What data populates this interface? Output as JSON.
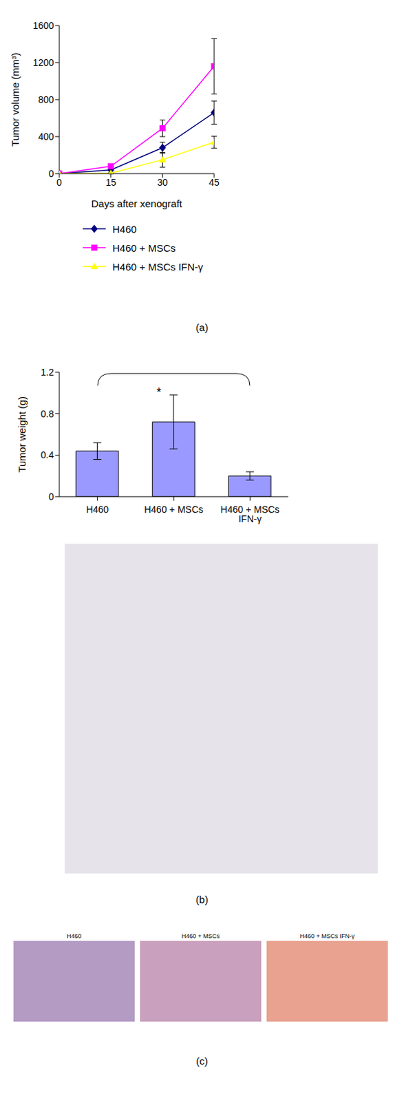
{
  "chart_data": [
    {
      "type": "line",
      "panel": "(a)",
      "x_label": "Days after xenograft",
      "y_label": "Tumor volume (mm³)",
      "x": [
        0,
        15,
        30,
        45
      ],
      "xlim": [
        0,
        45
      ],
      "xticks": [
        0,
        15,
        30,
        45
      ],
      "ylim": [
        0,
        1600
      ],
      "yticks": [
        0,
        400,
        800,
        1200,
        1600
      ],
      "legend": "bottom",
      "series": [
        {
          "name": "H460",
          "color": "#000080",
          "marker": "diamond",
          "values": [
            0,
            40,
            280,
            660
          ],
          "errors": [
            0,
            10,
            60,
            125
          ]
        },
        {
          "name": "H460 + MSCs",
          "color": "#ff00ff",
          "marker": "square",
          "values": [
            0,
            80,
            490,
            1160
          ],
          "errors": [
            0,
            15,
            90,
            300
          ]
        },
        {
          "name": "H460 + MSCs IFN-γ",
          "color": "#ffff00",
          "marker": "triangle",
          "values": [
            0,
            5,
            150,
            340
          ],
          "errors": [
            0,
            5,
            80,
            65
          ]
        }
      ]
    },
    {
      "type": "bar",
      "panel": "(b)",
      "y_label": "Tumor weight (g)",
      "categories": [
        "H460",
        "H460 + MSCs",
        "H460 + MSCs IFN-γ"
      ],
      "values": [
        0.44,
        0.72,
        0.2
      ],
      "errors": [
        0.08,
        0.26,
        0.04
      ],
      "color": "#9999ff",
      "ylim": [
        0,
        1.2
      ],
      "yticks": [
        0,
        0.4,
        0.8,
        1.2
      ],
      "annotation": "*"
    }
  ],
  "images": {
    "panel": "(c)",
    "titles": [
      "H460",
      "H460 + MSCs",
      "H460 + MSCs IFN-γ"
    ]
  }
}
